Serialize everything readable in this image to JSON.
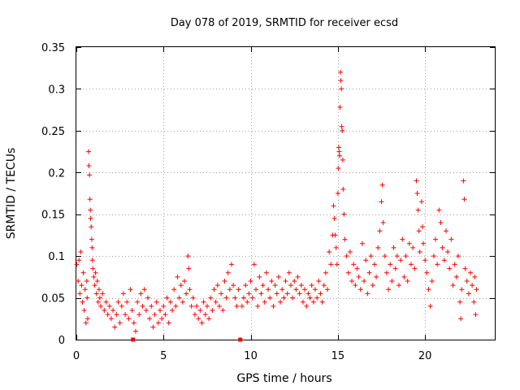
{
  "chart_data": {
    "type": "scatter",
    "title": "Day 078 of 2019, SRMTID for receiver ecsd",
    "xlabel": "GPS time / hours",
    "ylabel": "SRMTID / TECUs",
    "xlim": [
      0,
      24
    ],
    "ylim": [
      0,
      0.35
    ],
    "xticks": [
      "0",
      "5",
      "10",
      "15",
      "20"
    ],
    "yticks": [
      "0",
      "0.05",
      "0.1",
      "0.15",
      "0.2",
      "0.25",
      "0.3",
      "0.35"
    ],
    "grid": true,
    "marker": "plus",
    "colors": {
      "points": "#ff0000",
      "gap_markers": "#ff0000",
      "grid": "#a0a0a0"
    },
    "series": [
      {
        "name": "SRMTID",
        "points": [
          [
            0.02,
            0.09
          ],
          [
            0.1,
            0.07
          ],
          [
            0.15,
            0.095
          ],
          [
            0.2,
            0.055
          ],
          [
            0.25,
            0.105
          ],
          [
            0.3,
            0.065
          ],
          [
            0.35,
            0.045
          ],
          [
            0.4,
            0.08
          ],
          [
            0.45,
            0.035
          ],
          [
            0.5,
            0.06
          ],
          [
            0.55,
            0.02
          ],
          [
            0.6,
            0.07
          ],
          [
            0.62,
            0.05
          ],
          [
            0.65,
            0.025
          ],
          [
            0.7,
            0.225
          ],
          [
            0.72,
            0.208
          ],
          [
            0.75,
            0.197
          ],
          [
            0.78,
            0.168
          ],
          [
            0.8,
            0.155
          ],
          [
            0.82,
            0.145
          ],
          [
            0.85,
            0.135
          ],
          [
            0.88,
            0.12
          ],
          [
            0.9,
            0.11
          ],
          [
            0.92,
            0.095
          ],
          [
            0.95,
            0.085
          ],
          [
            1.0,
            0.075
          ],
          [
            1.05,
            0.065
          ],
          [
            1.1,
            0.08
          ],
          [
            1.15,
            0.055
          ],
          [
            1.2,
            0.07
          ],
          [
            1.25,
            0.045
          ],
          [
            1.3,
            0.06
          ],
          [
            1.35,
            0.05
          ],
          [
            1.4,
            0.04
          ],
          [
            1.5,
            0.055
          ],
          [
            1.6,
            0.035
          ],
          [
            1.7,
            0.045
          ],
          [
            1.8,
            0.03
          ],
          [
            1.9,
            0.04
          ],
          [
            2.0,
            0.025
          ],
          [
            2.1,
            0.035
          ],
          [
            2.2,
            0.015
          ],
          [
            2.3,
            0.03
          ],
          [
            2.4,
            0.045
          ],
          [
            2.5,
            0.02
          ],
          [
            2.6,
            0.04
          ],
          [
            2.7,
            0.055
          ],
          [
            2.8,
            0.03
          ],
          [
            2.9,
            0.045
          ],
          [
            3.0,
            0.025
          ],
          [
            3.1,
            0.06
          ],
          [
            3.2,
            0.035
          ],
          [
            3.3,
            0.02
          ],
          [
            3.4,
            0.01
          ],
          [
            3.5,
            0.045
          ],
          [
            3.6,
            0.03
          ],
          [
            3.7,
            0.055
          ],
          [
            3.8,
            0.04
          ],
          [
            3.9,
            0.06
          ],
          [
            4.0,
            0.035
          ],
          [
            4.1,
            0.05
          ],
          [
            4.2,
            0.025
          ],
          [
            4.3,
            0.04
          ],
          [
            4.4,
            0.015
          ],
          [
            4.5,
            0.03
          ],
          [
            4.6,
            0.045
          ],
          [
            4.7,
            0.02
          ],
          [
            4.8,
            0.035
          ],
          [
            4.9,
            0.025
          ],
          [
            5.0,
            0.04
          ],
          [
            5.1,
            0.03
          ],
          [
            5.2,
            0.05
          ],
          [
            5.3,
            0.02
          ],
          [
            5.4,
            0.045
          ],
          [
            5.5,
            0.035
          ],
          [
            5.6,
            0.06
          ],
          [
            5.7,
            0.04
          ],
          [
            5.8,
            0.075
          ],
          [
            5.9,
            0.05
          ],
          [
            6.0,
            0.065
          ],
          [
            6.1,
            0.045
          ],
          [
            6.2,
            0.07
          ],
          [
            6.3,
            0.055
          ],
          [
            6.4,
            0.1
          ],
          [
            6.45,
            0.085
          ],
          [
            6.5,
            0.06
          ],
          [
            6.6,
            0.04
          ],
          [
            6.7,
            0.05
          ],
          [
            6.8,
            0.03
          ],
          [
            6.9,
            0.04
          ],
          [
            7.0,
            0.025
          ],
          [
            7.1,
            0.035
          ],
          [
            7.2,
            0.02
          ],
          [
            7.3,
            0.045
          ],
          [
            7.4,
            0.03
          ],
          [
            7.5,
            0.04
          ],
          [
            7.6,
            0.025
          ],
          [
            7.7,
            0.05
          ],
          [
            7.8,
            0.035
          ],
          [
            7.9,
            0.06
          ],
          [
            8.0,
            0.045
          ],
          [
            8.1,
            0.065
          ],
          [
            8.2,
            0.04
          ],
          [
            8.3,
            0.055
          ],
          [
            8.4,
            0.035
          ],
          [
            8.5,
            0.07
          ],
          [
            8.6,
            0.05
          ],
          [
            8.7,
            0.08
          ],
          [
            8.8,
            0.06
          ],
          [
            8.9,
            0.09
          ],
          [
            9.0,
            0.065
          ],
          [
            9.1,
            0.05
          ],
          [
            9.2,
            0.04
          ],
          [
            9.3,
            0.06
          ],
          [
            9.5,
            0.04
          ],
          [
            9.6,
            0.05
          ],
          [
            9.7,
            0.065
          ],
          [
            9.8,
            0.045
          ],
          [
            9.9,
            0.055
          ],
          [
            10.0,
            0.07
          ],
          [
            10.1,
            0.05
          ],
          [
            10.2,
            0.09
          ],
          [
            10.3,
            0.06
          ],
          [
            10.4,
            0.04
          ],
          [
            10.5,
            0.075
          ],
          [
            10.6,
            0.055
          ],
          [
            10.7,
            0.065
          ],
          [
            10.8,
            0.045
          ],
          [
            10.9,
            0.08
          ],
          [
            11.0,
            0.06
          ],
          [
            11.1,
            0.05
          ],
          [
            11.2,
            0.07
          ],
          [
            11.3,
            0.04
          ],
          [
            11.4,
            0.065
          ],
          [
            11.5,
            0.055
          ],
          [
            11.6,
            0.075
          ],
          [
            11.7,
            0.045
          ],
          [
            11.8,
            0.06
          ],
          [
            11.9,
            0.05
          ],
          [
            12.0,
            0.07
          ],
          [
            12.1,
            0.055
          ],
          [
            12.2,
            0.08
          ],
          [
            12.3,
            0.065
          ],
          [
            12.4,
            0.05
          ],
          [
            12.5,
            0.07
          ],
          [
            12.6,
            0.06
          ],
          [
            12.7,
            0.075
          ],
          [
            12.8,
            0.055
          ],
          [
            12.9,
            0.065
          ],
          [
            13.0,
            0.045
          ],
          [
            13.1,
            0.06
          ],
          [
            13.2,
            0.04
          ],
          [
            13.3,
            0.055
          ],
          [
            13.4,
            0.05
          ],
          [
            13.5,
            0.065
          ],
          [
            13.6,
            0.045
          ],
          [
            13.7,
            0.06
          ],
          [
            13.8,
            0.05
          ],
          [
            13.9,
            0.07
          ],
          [
            14.0,
            0.055
          ],
          [
            14.1,
            0.045
          ],
          [
            14.2,
            0.065
          ],
          [
            14.3,
            0.08
          ],
          [
            14.4,
            0.06
          ],
          [
            14.5,
            0.105
          ],
          [
            14.6,
            0.09
          ],
          [
            14.7,
            0.125
          ],
          [
            14.75,
            0.16
          ],
          [
            14.8,
            0.145
          ],
          [
            14.85,
            0.125
          ],
          [
            14.9,
            0.11
          ],
          [
            14.95,
            0.09
          ],
          [
            15.0,
            0.175
          ],
          [
            15.02,
            0.205
          ],
          [
            15.05,
            0.23
          ],
          [
            15.07,
            0.225
          ],
          [
            15.1,
            0.22
          ],
          [
            15.12,
            0.278
          ],
          [
            15.15,
            0.32
          ],
          [
            15.17,
            0.31
          ],
          [
            15.2,
            0.3
          ],
          [
            15.22,
            0.255
          ],
          [
            15.25,
            0.25
          ],
          [
            15.28,
            0.215
          ],
          [
            15.3,
            0.18
          ],
          [
            15.35,
            0.15
          ],
          [
            15.4,
            0.12
          ],
          [
            15.5,
            0.1
          ],
          [
            15.6,
            0.08
          ],
          [
            15.7,
            0.105
          ],
          [
            15.8,
            0.07
          ],
          [
            15.9,
            0.09
          ],
          [
            16.0,
            0.065
          ],
          [
            16.1,
            0.085
          ],
          [
            16.2,
            0.075
          ],
          [
            16.3,
            0.06
          ],
          [
            16.4,
            0.115
          ],
          [
            16.5,
            0.07
          ],
          [
            16.6,
            0.095
          ],
          [
            16.7,
            0.055
          ],
          [
            16.8,
            0.08
          ],
          [
            16.9,
            0.1
          ],
          [
            17.0,
            0.065
          ],
          [
            17.1,
            0.09
          ],
          [
            17.2,
            0.075
          ],
          [
            17.3,
            0.11
          ],
          [
            17.4,
            0.13
          ],
          [
            17.5,
            0.165
          ],
          [
            17.55,
            0.185
          ],
          [
            17.6,
            0.14
          ],
          [
            17.7,
            0.1
          ],
          [
            17.8,
            0.08
          ],
          [
            17.9,
            0.06
          ],
          [
            18.0,
            0.09
          ],
          [
            18.1,
            0.07
          ],
          [
            18.2,
            0.11
          ],
          [
            18.3,
            0.085
          ],
          [
            18.4,
            0.1
          ],
          [
            18.5,
            0.065
          ],
          [
            18.6,
            0.095
          ],
          [
            18.7,
            0.12
          ],
          [
            18.8,
            0.075
          ],
          [
            18.9,
            0.1
          ],
          [
            19.0,
            0.07
          ],
          [
            19.1,
            0.115
          ],
          [
            19.2,
            0.09
          ],
          [
            19.3,
            0.11
          ],
          [
            19.4,
            0.085
          ],
          [
            19.5,
            0.19
          ],
          [
            19.55,
            0.175
          ],
          [
            19.6,
            0.155
          ],
          [
            19.65,
            0.13
          ],
          [
            19.7,
            0.105
          ],
          [
            19.8,
            0.165
          ],
          [
            19.85,
            0.135
          ],
          [
            19.9,
            0.115
          ],
          [
            20.0,
            0.095
          ],
          [
            20.1,
            0.08
          ],
          [
            20.2,
            0.06
          ],
          [
            20.3,
            0.04
          ],
          [
            20.4,
            0.07
          ],
          [
            20.5,
            0.1
          ],
          [
            20.6,
            0.12
          ],
          [
            20.7,
            0.09
          ],
          [
            20.8,
            0.155
          ],
          [
            20.9,
            0.14
          ],
          [
            21.0,
            0.11
          ],
          [
            21.1,
            0.095
          ],
          [
            21.2,
            0.13
          ],
          [
            21.3,
            0.105
          ],
          [
            21.4,
            0.085
          ],
          [
            21.5,
            0.12
          ],
          [
            21.6,
            0.065
          ],
          [
            21.7,
            0.09
          ],
          [
            21.8,
            0.075
          ],
          [
            21.9,
            0.1
          ],
          [
            22.0,
            0.045
          ],
          [
            22.05,
            0.025
          ],
          [
            22.1,
            0.06
          ],
          [
            22.2,
            0.19
          ],
          [
            22.25,
            0.168
          ],
          [
            22.3,
            0.085
          ],
          [
            22.4,
            0.07
          ],
          [
            22.5,
            0.055
          ],
          [
            22.6,
            0.08
          ],
          [
            22.7,
            0.065
          ],
          [
            22.8,
            0.045
          ],
          [
            22.85,
            0.075
          ],
          [
            22.9,
            0.03
          ],
          [
            22.95,
            0.06
          ]
        ]
      }
    ],
    "gap_markers": [
      [
        3.25,
        0.0
      ],
      [
        9.4,
        0.0
      ]
    ]
  }
}
